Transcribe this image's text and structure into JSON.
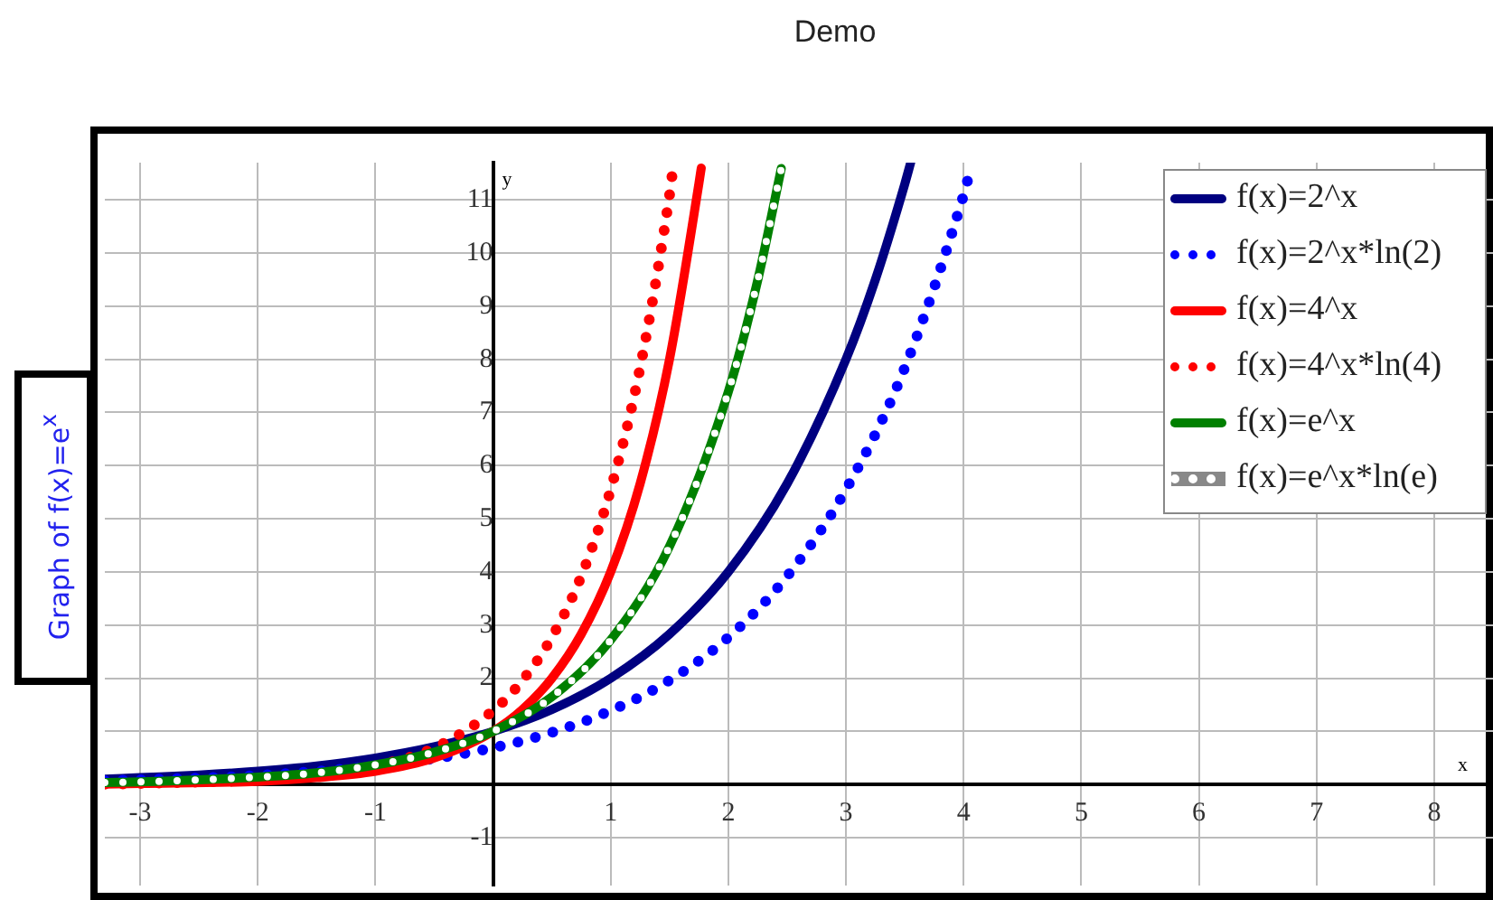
{
  "chart_data": {
    "type": "line",
    "title": "Demo",
    "xlabel": "x",
    "ylabel": "y",
    "annotations": [
      "Graph of f(x)=e$^{x}$"
    ],
    "xlim": [
      -3.3,
      8.5
    ],
    "ylim": [
      -1.9,
      11.7
    ],
    "xticks": [
      -3,
      -2,
      -1,
      1,
      2,
      3,
      4,
      5,
      6,
      7,
      8
    ],
    "yticks": [
      -1,
      {
        "value": 1,
        "label": null
      },
      2,
      3,
      4,
      5,
      6,
      7,
      8,
      9,
      10,
      11
    ],
    "grid": true,
    "legend": "top right",
    "series": [
      {
        "name": "f(x)=2^x",
        "color": "#000080",
        "line_style": "solid",
        "x": [
          -3.3,
          -3,
          -2.5,
          -2,
          -1.5,
          -1,
          -0.5,
          0,
          0.5,
          1,
          1.5,
          2,
          2.5,
          3,
          3.25,
          3.5,
          3.55
        ],
        "values": [
          0.1,
          0.13,
          0.18,
          0.25,
          0.35,
          0.5,
          0.71,
          1,
          1.41,
          2,
          2.83,
          4,
          5.66,
          8,
          9.5,
          11.3,
          11.7
        ]
      },
      {
        "name": "f(x)=2^x*ln(2)",
        "color": "#0000ff",
        "line_style": "dotted",
        "x": [
          -3.3,
          -3,
          -2,
          -1,
          -0.5,
          0,
          0.5,
          1,
          1.5,
          2,
          2.5,
          3,
          3.5,
          4,
          4.05
        ],
        "values": [
          0.07,
          0.09,
          0.17,
          0.35,
          0.49,
          0.69,
          0.98,
          1.39,
          1.96,
          2.77,
          3.92,
          5.55,
          7.84,
          11.09,
          11.5
        ]
      },
      {
        "name": "f(x)=4^x",
        "color": "#ff0000",
        "line_style": "solid",
        "x": [
          -3.3,
          -3,
          -2,
          -1.5,
          -1,
          -0.5,
          0,
          0.25,
          0.5,
          0.75,
          1,
          1.25,
          1.5,
          1.75,
          1.77
        ],
        "values": [
          0.01,
          0.02,
          0.06,
          0.13,
          0.25,
          0.5,
          1,
          1.41,
          2,
          2.83,
          4,
          5.66,
          8,
          11.31,
          11.6
        ]
      },
      {
        "name": "f(x)=4^x*ln(4)",
        "color": "#ff0000",
        "line_style": "dotted",
        "x": [
          -3.3,
          -3,
          -2,
          -1.5,
          -1,
          -0.5,
          0,
          0.25,
          0.5,
          0.75,
          1,
          1.25,
          1.5,
          1.53
        ],
        "values": [
          0.01,
          0.02,
          0.09,
          0.17,
          0.35,
          0.69,
          1.39,
          1.96,
          2.77,
          3.92,
          5.55,
          7.84,
          11.09,
          11.6
        ]
      },
      {
        "name": "f(x)=e^x",
        "color": "#008000",
        "line_style": "solid",
        "x": [
          -3.3,
          -3,
          -2,
          -1.5,
          -1,
          -0.5,
          0,
          0.5,
          1,
          1.5,
          2,
          2.25,
          2.45
        ],
        "values": [
          0.04,
          0.05,
          0.14,
          0.22,
          0.37,
          0.61,
          1,
          1.65,
          2.72,
          4.48,
          7.39,
          9.49,
          11.59
        ]
      },
      {
        "name": "f(x)=e^x*ln(e)",
        "color": "#ffffff",
        "line_style": "dotted",
        "x": [
          -3.3,
          -3,
          -2,
          -1.5,
          -1,
          -0.5,
          0,
          0.5,
          1,
          1.5,
          2,
          2.25,
          2.45
        ],
        "values": [
          0.04,
          0.05,
          0.14,
          0.22,
          0.37,
          0.61,
          1,
          1.65,
          2.72,
          4.48,
          7.39,
          9.49,
          11.59
        ]
      }
    ]
  }
}
